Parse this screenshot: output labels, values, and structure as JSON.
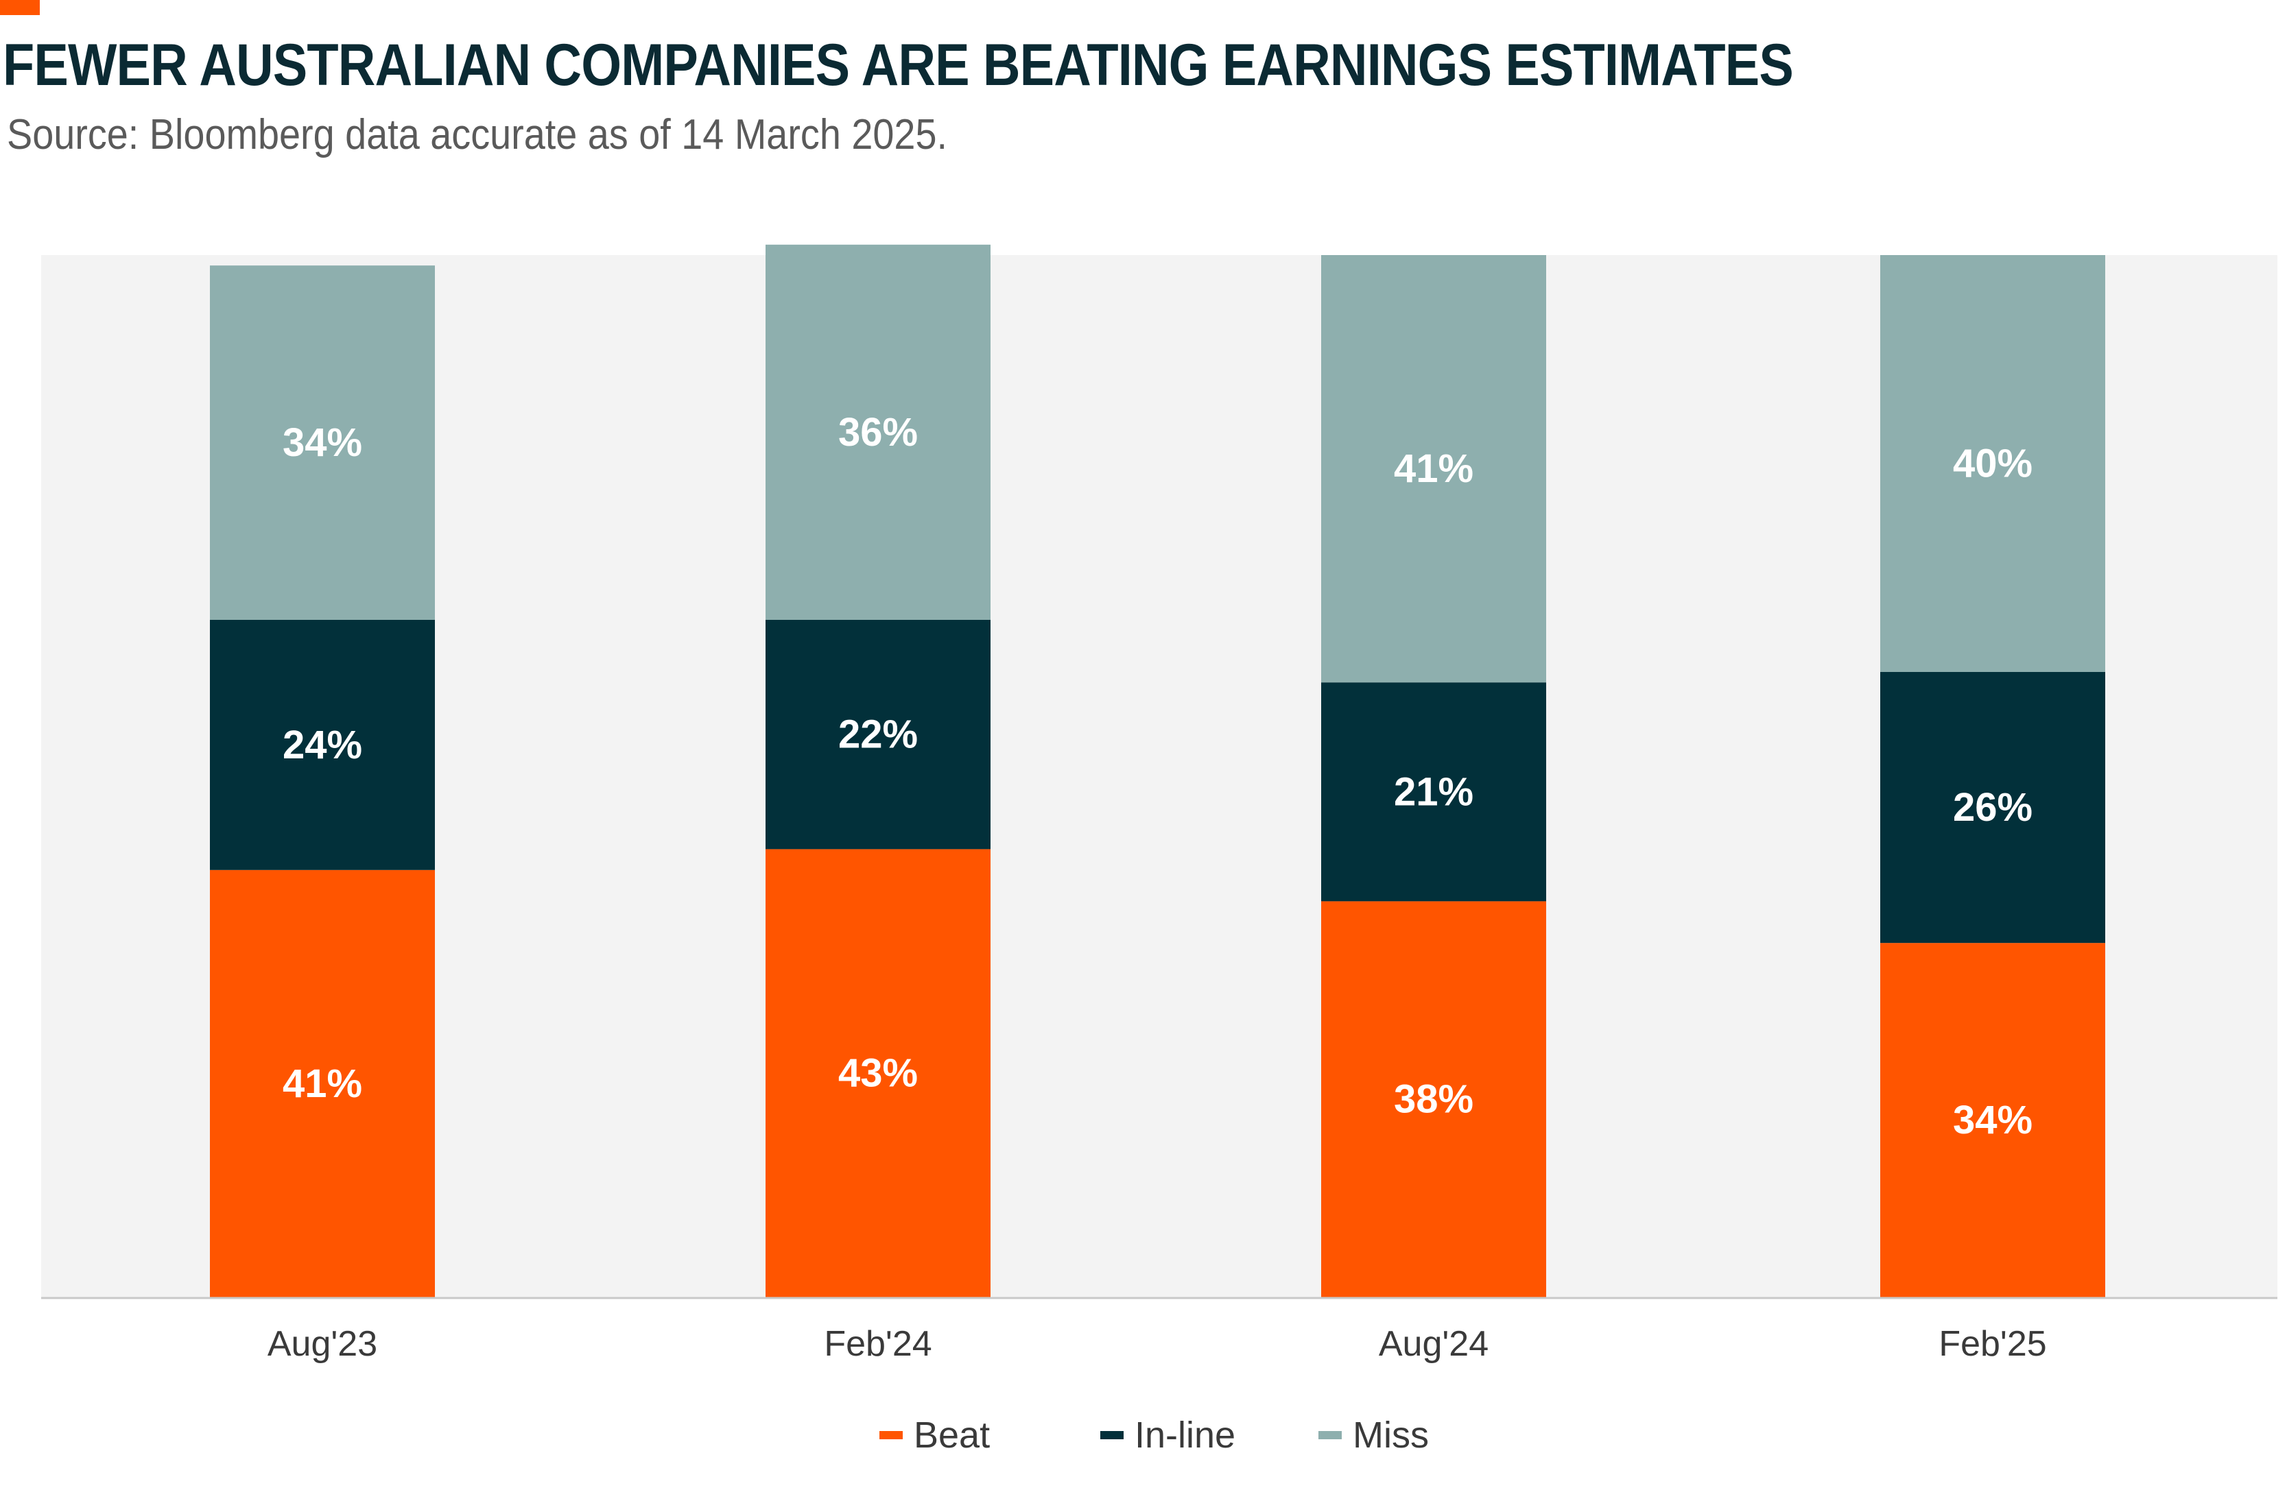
{
  "header": {
    "title": "FEWER AUSTRALIAN COMPANIES ARE BEATING EARNINGS ESTIMATES",
    "subtitle": "Source: Bloomberg data accurate as of 14 March 2025."
  },
  "colors": {
    "accent": "#ff5500",
    "title_text": "#0b2a33",
    "subtitle_text": "#5a5a5a",
    "plot_background": "#f3f3f3",
    "axis_line": "#c8c8c8",
    "tick_label": "#3a3a3a",
    "bar_label": "#ffffff"
  },
  "legend": {
    "items": [
      {
        "label": "Beat",
        "color": "#ff5500"
      },
      {
        "label": "In-line",
        "color": "#02303a"
      },
      {
        "label": "Miss",
        "color": "#8eafae"
      }
    ]
  },
  "chart_data": {
    "type": "bar",
    "stacked": true,
    "categories": [
      "Aug'23",
      "Feb'24",
      "Aug'24",
      "Feb'25"
    ],
    "series": [
      {
        "name": "Beat",
        "values": [
          41,
          43,
          38,
          34
        ],
        "labels": [
          "41%",
          "43%",
          "38%",
          "34%"
        ],
        "color": "#ff5500"
      },
      {
        "name": "In-line",
        "values": [
          24,
          22,
          21,
          26
        ],
        "labels": [
          "24%",
          "22%",
          "21%",
          "26%"
        ],
        "color": "#02303a"
      },
      {
        "name": "Miss",
        "values": [
          34,
          36,
          41,
          40
        ],
        "labels": [
          "34%",
          "36%",
          "41%",
          "40%"
        ],
        "color": "#8eafae"
      }
    ],
    "title": "FEWER AUSTRALIAN COMPANIES ARE BEATING EARNINGS ESTIMATES",
    "xlabel": "",
    "ylabel": "",
    "ylim": [
      0,
      100
    ],
    "legend_position": "bottom",
    "grid": false
  }
}
